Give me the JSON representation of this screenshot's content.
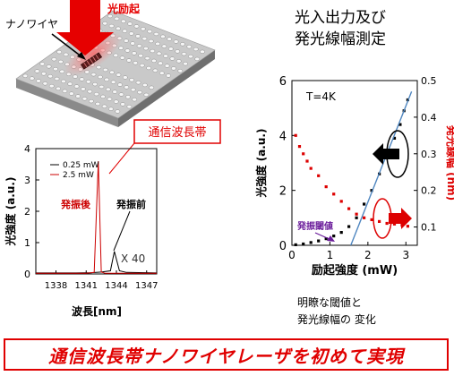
{
  "device": {
    "nanowire_label": "ナノワイヤ",
    "excitation_label": "光励起"
  },
  "spectrum": {
    "callout": "通信波長帯",
    "ylabel": "光強度 (a.u.)",
    "xlabel": "波長[nm]",
    "legend_high": "0.25 mW",
    "legend_low": "2.5 mW",
    "after_label": "発振後",
    "before_label": "発振前",
    "magnification": "X 40",
    "chart_data": {
      "type": "line",
      "xlim": [
        1336,
        1348
      ],
      "ylim": [
        0,
        4
      ],
      "xticks": [
        "1338",
        "1341",
        "1344",
        "1347"
      ],
      "yticks": [
        "0",
        "1",
        "2",
        "3",
        "4"
      ],
      "series": [
        {
          "name": "0.25 mW",
          "color": "#000000",
          "x": [
            1336,
            1340,
            1341.5,
            1342.5,
            1343.4,
            1343.8,
            1344.3,
            1345,
            1348
          ],
          "y": [
            0.03,
            0.03,
            0.04,
            0.06,
            0.1,
            0.72,
            0.1,
            0.05,
            0.03
          ]
        },
        {
          "name": "2.5 mW",
          "color": "#cc0000",
          "x": [
            1336,
            1341,
            1341.8,
            1342.2,
            1342.5,
            1342.9,
            1343.3,
            1348
          ],
          "y": [
            0.02,
            0.02,
            0.05,
            3.6,
            0.06,
            0.02,
            0.02,
            0.02
          ]
        }
      ]
    }
  },
  "io": {
    "title_line1": "光入出力及び",
    "title_line2": "発光線幅測定",
    "temperature": "T=4K",
    "ylabel_left": "光強度 (a.u.)",
    "ylabel_right": "発光線幅 (nm)",
    "xlabel": "励起強度 (mW)",
    "threshold_label": "発振閾値",
    "chart_data": {
      "type": "scatter",
      "xlim": [
        0,
        3.3
      ],
      "ylim_left": [
        0,
        6
      ],
      "ylim_right": [
        0.05,
        0.5
      ],
      "xticks": [
        "0",
        "1",
        "2",
        "3"
      ],
      "yticks_left": [
        "0",
        "2",
        "4",
        "6"
      ],
      "yticks_right": [
        "0.1",
        "0.2",
        "0.3",
        "0.4",
        "0.5"
      ],
      "series": [
        {
          "name": "intensity",
          "color": "#000000",
          "x": [
            0.1,
            0.3,
            0.5,
            0.7,
            0.9,
            1.1,
            1.3,
            1.5,
            1.7,
            1.9,
            2.1,
            2.3,
            2.5,
            2.7,
            2.85,
            2.95,
            3.05
          ],
          "y": [
            0.02,
            0.05,
            0.1,
            0.16,
            0.24,
            0.34,
            0.47,
            0.68,
            1.0,
            1.5,
            2.0,
            2.6,
            3.2,
            3.9,
            4.4,
            4.9,
            5.3
          ]
        },
        {
          "name": "linewidth",
          "color": "#dd0000",
          "x": [
            0.1,
            0.2,
            0.3,
            0.4,
            0.5,
            0.7,
            0.9,
            1.1,
            1.3,
            1.5,
            1.7,
            1.9,
            2.1,
            2.3,
            2.5,
            2.7,
            2.9,
            3.05
          ],
          "y": [
            0.35,
            0.32,
            0.3,
            0.28,
            0.26,
            0.24,
            0.21,
            0.19,
            0.17,
            0.15,
            0.135,
            0.125,
            0.12,
            0.115,
            0.11,
            0.108,
            0.105,
            0.102
          ]
        },
        {
          "name": "fit",
          "color": "#4f86c0",
          "x": [
            1.55,
            3.15
          ],
          "y": [
            0.0,
            5.6
          ]
        }
      ]
    },
    "note_line1": "明瞭な閾値と",
    "note_line2": "発光線幅の 変化"
  },
  "banner": "通信波長帯ナノワイヤレーザを初めて実現"
}
